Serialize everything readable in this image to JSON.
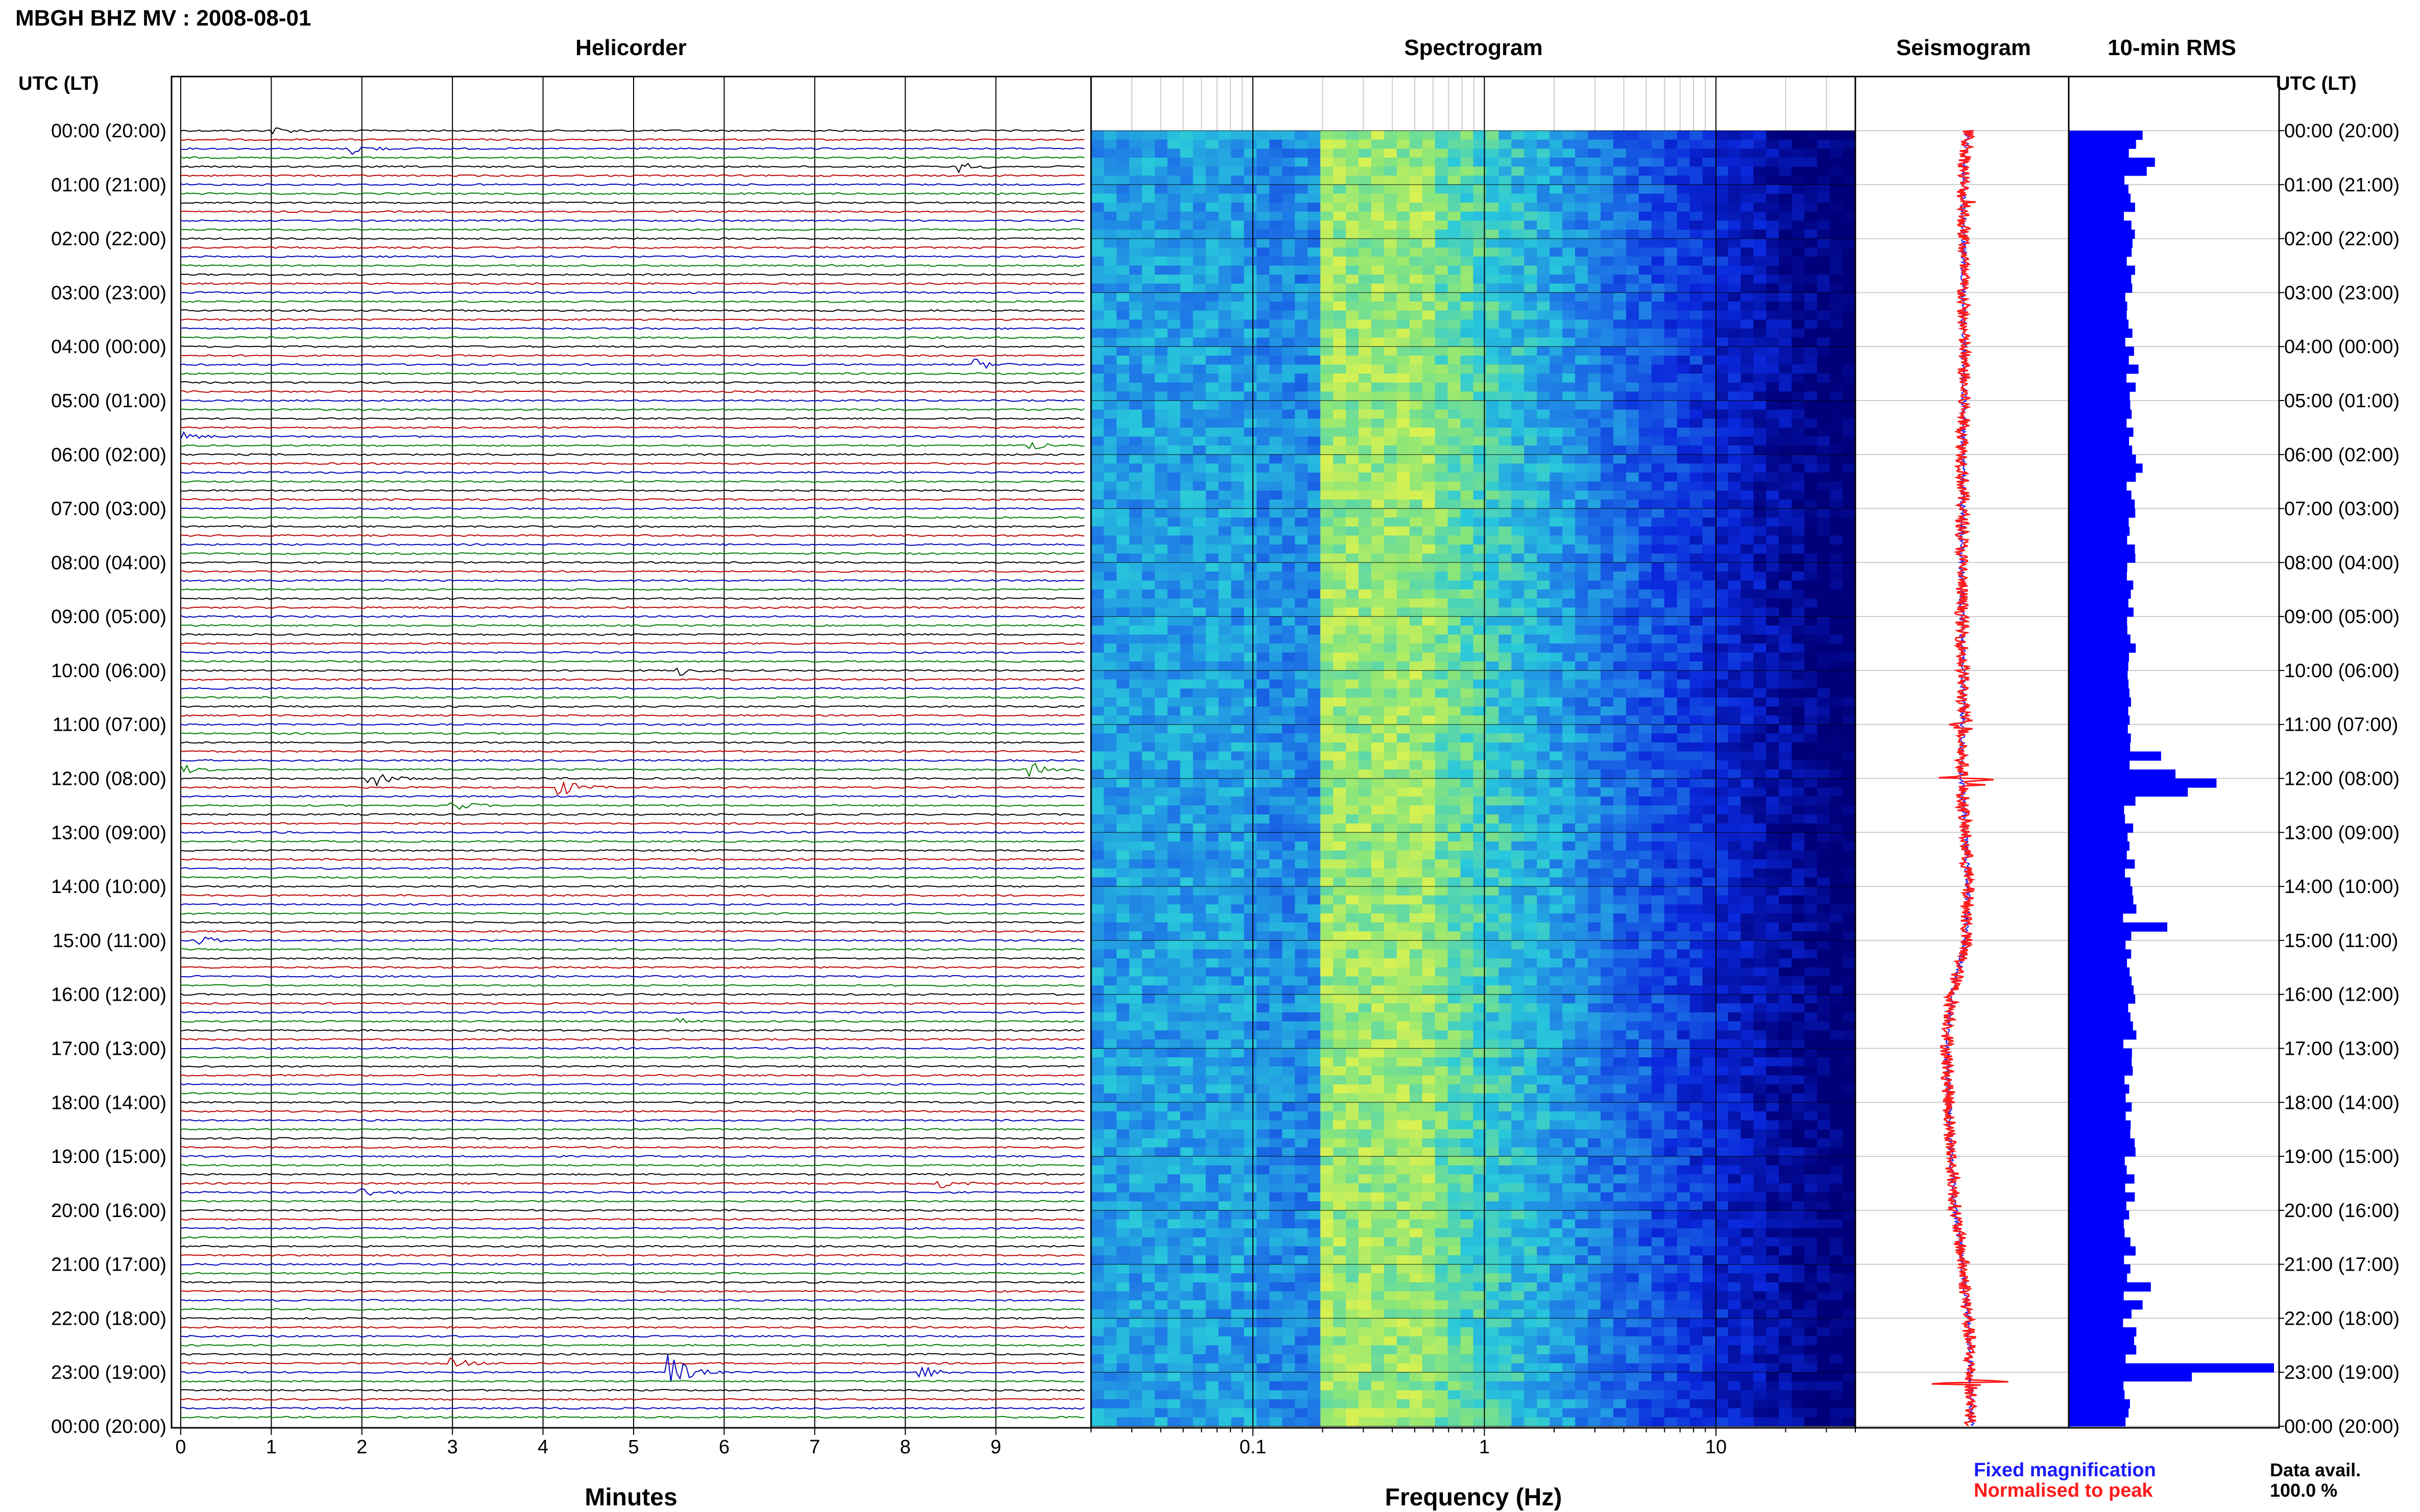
{
  "title": "MBGH BHZ MV : 2008-08-01",
  "utc_label_left": "UTC (LT)",
  "utc_label_right": "UTC (LT)",
  "panels": {
    "helicorder": "Helicorder",
    "spectrogram": "Spectrogram",
    "seismogram": "Seismogram",
    "rms": "10-min RMS"
  },
  "time_labels": [
    "00:00 (20:00)",
    "01:00 (21:00)",
    "02:00 (22:00)",
    "03:00 (23:00)",
    "04:00 (00:00)",
    "05:00 (01:00)",
    "06:00 (02:00)",
    "07:00 (03:00)",
    "08:00 (04:00)",
    "09:00 (05:00)",
    "10:00 (06:00)",
    "11:00 (07:00)",
    "12:00 (08:00)",
    "13:00 (09:00)",
    "14:00 (10:00)",
    "15:00 (11:00)",
    "16:00 (12:00)",
    "17:00 (13:00)",
    "18:00 (14:00)",
    "19:00 (15:00)",
    "20:00 (16:00)",
    "21:00 (17:00)",
    "22:00 (18:00)",
    "23:00 (19:00)",
    "00:00 (20:00)"
  ],
  "legend": {
    "fixed": "Fixed magnification",
    "normalised": "Normalised to peak",
    "fixed_color": "#1a1aff",
    "normalised_color": "#ff1a1a"
  },
  "data_avail": {
    "label": "Data avail.",
    "value": "100.0 %"
  },
  "colors": {
    "trace_cycle": [
      "#000000",
      "#c00000",
      "#0000c0",
      "#008000"
    ],
    "rms_bar": "#0000ff",
    "spectrogram_low": "#00007a",
    "spectrogram_high": "#ffff40"
  },
  "chart_data": [
    {
      "type": "line",
      "name": "helicorder",
      "title": "Helicorder",
      "xlabel": "Minutes",
      "x_ticks": [
        "0",
        "1",
        "2",
        "3",
        "4",
        "5",
        "6",
        "7",
        "8",
        "9"
      ],
      "xlim": [
        0,
        10
      ],
      "lines_per_hour": 6,
      "hours": 24,
      "events": [
        {
          "row": 0,
          "minute": 1.0,
          "amp": 0.6
        },
        {
          "row": 2,
          "minute": 1.9,
          "amp": 0.8
        },
        {
          "row": 4,
          "minute": 8.6,
          "amp": 0.7
        },
        {
          "row": 26,
          "minute": 8.8,
          "amp": 0.7
        },
        {
          "row": 34,
          "minute": 0.0,
          "amp": 0.6
        },
        {
          "row": 35,
          "minute": 9.4,
          "amp": 0.7
        },
        {
          "row": 60,
          "minute": 5.5,
          "amp": 0.7
        },
        {
          "row": 71,
          "minute": 0.0,
          "amp": 0.7
        },
        {
          "row": 71,
          "minute": 9.4,
          "amp": 0.9
        },
        {
          "row": 72,
          "minute": 2.1,
          "amp": 1.3
        },
        {
          "row": 73,
          "minute": 4.2,
          "amp": 1.2
        },
        {
          "row": 75,
          "minute": 3.0,
          "amp": 0.8
        },
        {
          "row": 90,
          "minute": 0.2,
          "amp": 0.9
        },
        {
          "row": 99,
          "minute": 5.5,
          "amp": 0.4
        },
        {
          "row": 117,
          "minute": 8.4,
          "amp": 0.6
        },
        {
          "row": 118,
          "minute": 2.0,
          "amp": 0.7
        },
        {
          "row": 137,
          "minute": 3.0,
          "amp": 0.7
        },
        {
          "row": 138,
          "minute": 5.4,
          "amp": 2.8
        },
        {
          "row": 138,
          "minute": 8.2,
          "amp": 0.8
        }
      ]
    },
    {
      "type": "heatmap",
      "name": "spectrogram",
      "title": "Spectrogram",
      "xlabel": "Frequency (Hz)",
      "x_scale": "log",
      "xlim": [
        0.02,
        40
      ],
      "x_ticks": [
        "0.1",
        "1",
        "10"
      ],
      "x_tick_values": [
        0.1,
        1,
        10
      ],
      "peak_band_hz": [
        0.2,
        0.6
      ],
      "ylim_hours": [
        0,
        24
      ]
    },
    {
      "type": "line",
      "name": "seismogram",
      "title": "Seismogram",
      "series": [
        {
          "name": "Fixed magnification",
          "color": "#1a1aff"
        },
        {
          "name": "Normalised to peak",
          "color": "#ff1a1a"
        }
      ],
      "offset_by_hour": [
        0.0,
        -0.05,
        -0.04,
        -0.05,
        -0.04,
        -0.04,
        -0.05,
        -0.05,
        -0.06,
        -0.06,
        -0.05,
        -0.05,
        -0.06,
        -0.03,
        0.0,
        -0.02,
        -0.15,
        -0.2,
        -0.18,
        -0.16,
        -0.12,
        -0.05,
        0.0,
        0.02,
        0.03
      ]
    },
    {
      "type": "bar",
      "name": "rms",
      "title": "10-min RMS",
      "orientation": "horizontal",
      "bins_per_hour": 6,
      "typical_value": 0.3,
      "peaks": [
        {
          "bin": 0,
          "value": 0.36
        },
        {
          "bin": 3,
          "value": 0.42
        },
        {
          "bin": 4,
          "value": 0.38
        },
        {
          "bin": 26,
          "value": 0.34
        },
        {
          "bin": 37,
          "value": 0.36
        },
        {
          "bin": 69,
          "value": 0.45
        },
        {
          "bin": 71,
          "value": 0.52
        },
        {
          "bin": 72,
          "value": 0.72
        },
        {
          "bin": 73,
          "value": 0.58
        },
        {
          "bin": 88,
          "value": 0.48
        },
        {
          "bin": 128,
          "value": 0.4
        },
        {
          "bin": 130,
          "value": 0.36
        },
        {
          "bin": 137,
          "value": 1.0
        },
        {
          "bin": 138,
          "value": 0.6
        }
      ],
      "xlim": [
        0,
        1.0
      ]
    }
  ]
}
